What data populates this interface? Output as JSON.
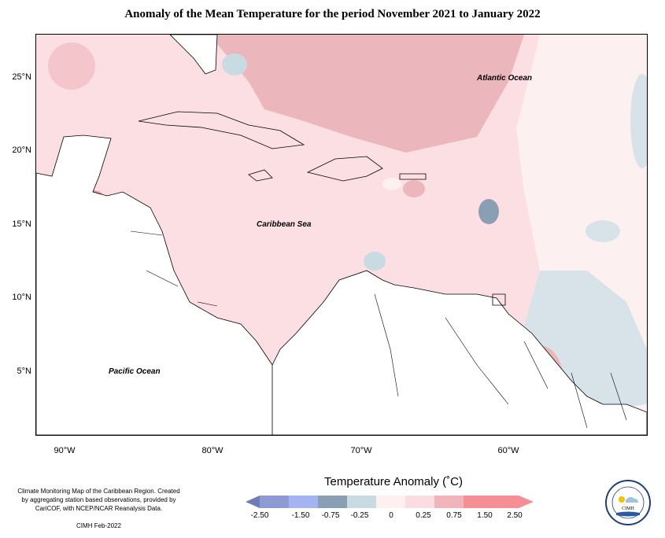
{
  "title": "Anomaly of the Mean Temperature for the period November 2021 to January 2022",
  "latitude_labels": [
    "25°N",
    "20°N",
    "15°N",
    "10°N",
    "5°N"
  ],
  "longitude_labels": [
    "90°W",
    "80°W",
    "70°W",
    "60°W"
  ],
  "ocean_labels": {
    "atlantic": "Atlantic Ocean",
    "caribbean": "Caribbean Sea",
    "pacific": "Pacific Ocean"
  },
  "legend": {
    "title": "Temperature Anomaly (˚C)",
    "ticks": [
      "-2.50",
      "-1.50",
      "-0.75",
      "-0.25",
      "0",
      "0.25",
      "0.75",
      "1.50",
      "2.50"
    ],
    "colors": [
      "#6f7db7",
      "#8d9ad6",
      "#a4b4f0",
      "#8b9fb4",
      "#c8dbe3",
      "#fdf0f1",
      "#fbdde1",
      "#f1b4bb",
      "#f58f95"
    ]
  },
  "colors": {
    "background_anomaly": "#fcdfe3",
    "warm_zone": "#ecb7bc",
    "cool_zone": "#d7e3e9",
    "land": "#ffffff"
  },
  "note": "Climate Monitoring Map of the Caribbean Region. Created by aggregating station based observations, provided by CariCOF, with NCEP/NCAR Reanalysis Data.",
  "credit": "CIMH Feb-2022",
  "logo": {
    "text": "CIMH"
  }
}
